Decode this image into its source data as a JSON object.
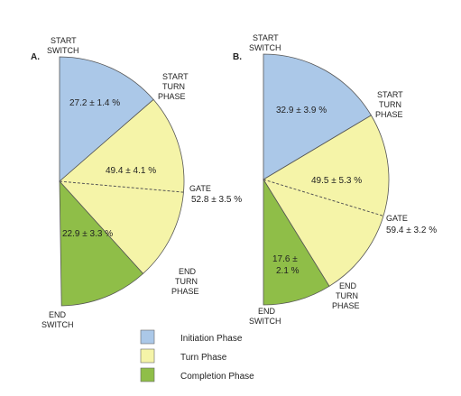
{
  "colors": {
    "initiation": "#abc8e8",
    "turn": "#f5f4a8",
    "completion": "#8fbe48",
    "outline": "#555555",
    "text": "#222222"
  },
  "legend": [
    {
      "label": "Initiation Phase",
      "color": "#abc8e8"
    },
    {
      "label": "Turn Phase",
      "color": "#f5f4a8"
    },
    {
      "label": "Completion Phase",
      "color": "#8fbe48"
    }
  ],
  "chart_data": [
    {
      "type": "pie",
      "panel": "A.",
      "title": "",
      "slices": [
        {
          "phase": "Initiation Phase",
          "label": "27.2 ± 1.4 %",
          "value": 27.2
        },
        {
          "phase": "Turn Phase",
          "label": "49.4 ± 4.1 %",
          "value": 49.4
        },
        {
          "phase": "Completion Phase",
          "label": "22.9 ± 3.3 %",
          "value": 22.9
        }
      ],
      "marker": {
        "value": 52.8,
        "label": "GATE",
        "value_label": "52.8 ± 3.5 %"
      },
      "annotations": [
        "START SWITCH",
        "START TURN PHASE",
        "END TURN PHASE",
        "END SWITCH"
      ]
    },
    {
      "type": "pie",
      "panel": "B.",
      "title": "",
      "slices": [
        {
          "phase": "Initiation Phase",
          "label": "32.9 ± 3.9 %",
          "value": 32.9
        },
        {
          "phase": "Turn Phase",
          "label": "49.5 ± 5.3 %",
          "value": 49.5
        },
        {
          "phase": "Completion Phase",
          "label": "17.6 ± 2.1 %",
          "value": 17.6
        }
      ],
      "marker": {
        "value": 59.4,
        "label": "GATE",
        "value_label": "59.4 ± 3.2 %"
      },
      "annotations": [
        "START SWITCH",
        "START TURN PHASE",
        "END TURN PHASE",
        "END SWITCH"
      ]
    }
  ]
}
